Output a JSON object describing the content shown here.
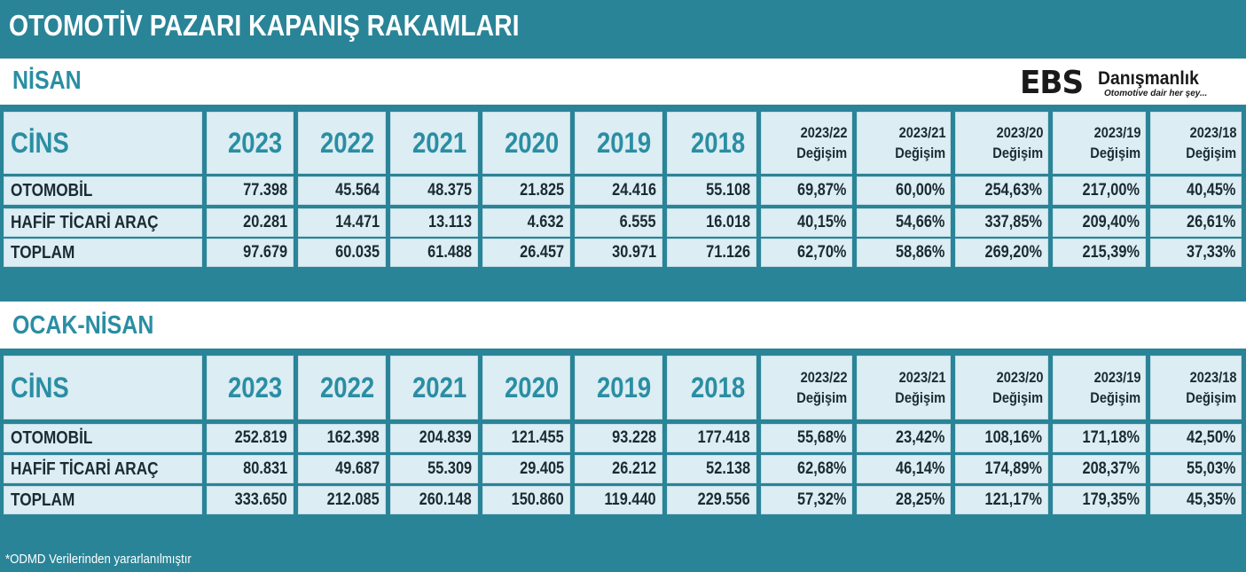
{
  "title": "OTOMOTİV PAZARI KAPANIŞ RAKAMLARI",
  "logo": {
    "brand": "EBS",
    "name": "Danışmanlık",
    "tagline": "Otomotive dair her şey..."
  },
  "sections": [
    {
      "title": "NİSAN",
      "header": {
        "label": "CİNS",
        "years": [
          "2023",
          "2022",
          "2021",
          "2020",
          "2019",
          "2018"
        ],
        "changes": [
          [
            "2023/22",
            "Değişim"
          ],
          [
            "2023/21",
            "Değişim"
          ],
          [
            "2023/20",
            "Değişim"
          ],
          [
            "2023/19",
            "Değişim"
          ],
          [
            "2023/18",
            "Değişim"
          ]
        ]
      },
      "rows": [
        {
          "label": "OTOMOBİL",
          "values": [
            "77.398",
            "45.564",
            "48.375",
            "21.825",
            "24.416",
            "55.108",
            "69,87%",
            "60,00%",
            "254,63%",
            "217,00%",
            "40,45%"
          ]
        },
        {
          "label": "HAFİF TİCARİ ARAÇ",
          "values": [
            "20.281",
            "14.471",
            "13.113",
            "4.632",
            "6.555",
            "16.018",
            "40,15%",
            "54,66%",
            "337,85%",
            "209,40%",
            "26,61%"
          ]
        },
        {
          "label": "TOPLAM",
          "values": [
            "97.679",
            "60.035",
            "61.488",
            "26.457",
            "30.971",
            "71.126",
            "62,70%",
            "58,86%",
            "269,20%",
            "215,39%",
            "37,33%"
          ]
        }
      ]
    },
    {
      "title": "OCAK-NİSAN",
      "header": {
        "label": "CİNS",
        "years": [
          "2023",
          "2022",
          "2021",
          "2020",
          "2019",
          "2018"
        ],
        "changes": [
          [
            "2023/22",
            "Değişim"
          ],
          [
            "2023/21",
            "Değişim"
          ],
          [
            "2023/20",
            "Değişim"
          ],
          [
            "2023/19",
            "Değişim"
          ],
          [
            "2023/18",
            "Değişim"
          ]
        ]
      },
      "rows": [
        {
          "label": "OTOMOBİL",
          "values": [
            "252.819",
            "162.398",
            "204.839",
            "121.455",
            "93.228",
            "177.418",
            "55,68%",
            "23,42%",
            "108,16%",
            "171,18%",
            "42,50%"
          ]
        },
        {
          "label": "HAFİF TİCARİ ARAÇ",
          "values": [
            "80.831",
            "49.687",
            "55.309",
            "29.405",
            "26.212",
            "52.138",
            "62,68%",
            "46,14%",
            "174,89%",
            "208,37%",
            "55,03%"
          ]
        },
        {
          "label": "TOPLAM",
          "values": [
            "333.650",
            "212.085",
            "260.148",
            "150.860",
            "119.440",
            "229.556",
            "57,32%",
            "28,25%",
            "121,17%",
            "179,35%",
            "45,35%"
          ]
        }
      ]
    }
  ],
  "footer": "*ODMD Verilerinden yararlanılmıştır",
  "colors": {
    "teal": "#2a8497",
    "accent_text": "#2a8ea3",
    "cell_bg": "#dcedf3"
  }
}
